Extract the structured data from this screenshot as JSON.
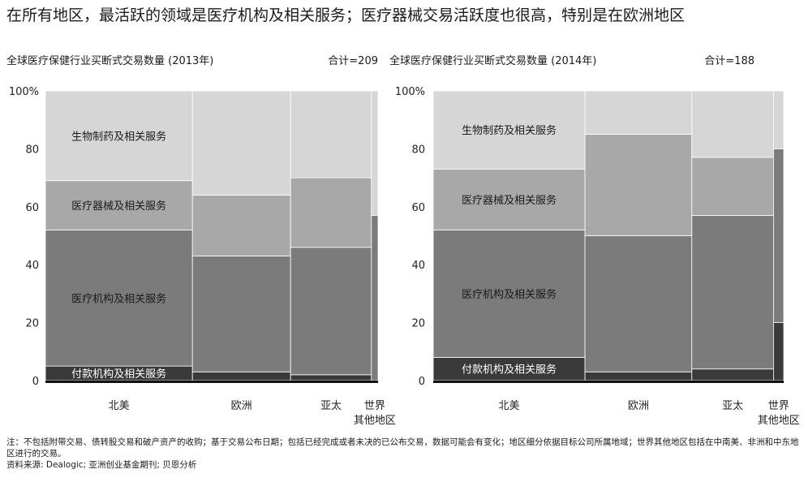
{
  "headline": "在所有地区，最活跃的领域是医疗机构及相关服务；医疗器械交易活跃度也很高，特别是在欧洲地区",
  "charts": [
    {
      "title": "全球医疗保健行业买断式交易数量 (2013年)",
      "total": "合计=209"
    },
    {
      "title": "全球医疗保健行业买断式交易数量 (2014年)",
      "total": "合计=188"
    }
  ],
  "notes": {
    "note": "注：不包括附带交易、债转股交易和破产资产的收购；基于交易公布日期；包括已经完成或者未决的已公布交易，数据可能会有变化；地区细分依据目标公司所属地域；世界其他地区包括在中南美、非洲和中东地区进行的交易。",
    "source": "资料来源: Dealogic; 亚洲创业基金期刊; 贝恩分析"
  },
  "chart_data": [
    {
      "type": "bar",
      "subtype": "marimekko",
      "title": "全球医疗保健行业买断式交易数量 (2013年)",
      "total_label": "合计=209",
      "y_ticks": [
        "100%",
        "80",
        "60",
        "40",
        "20",
        "0"
      ],
      "ylim": [
        0,
        100
      ],
      "categories": [
        "北美",
        "欧洲",
        "亚太",
        "世界其他地区"
      ],
      "category_labels": [
        [
          "北美"
        ],
        [
          "欧洲"
        ],
        [
          "亚太"
        ],
        [
          "世界",
          "其他地区"
        ]
      ],
      "widths": [
        44.2,
        29.5,
        24.3,
        2.0
      ],
      "series": [
        {
          "name": "付款机构及相关服务",
          "color": "#3a3a3a",
          "values": [
            5,
            3,
            2,
            0
          ]
        },
        {
          "name": "医疗机构及相关服务",
          "color": "#7b7b7b",
          "values": [
            47,
            40,
            44,
            57
          ]
        },
        {
          "name": "医疗器械及相关服务",
          "color": "#a8a8a8",
          "values": [
            17,
            21,
            24,
            0
          ]
        },
        {
          "name": "生物制药及相关服务",
          "color": "#d6d6d6",
          "values": [
            31,
            36,
            30,
            43
          ]
        }
      ],
      "segment_labels_on": "北美"
    },
    {
      "type": "bar",
      "subtype": "marimekko",
      "title": "全球医疗保健行业买断式交易数量 (2014年)",
      "total_label": "合计=188",
      "y_ticks": [
        "100%",
        "80",
        "60",
        "40",
        "20",
        "0"
      ],
      "ylim": [
        0,
        100
      ],
      "categories": [
        "北美",
        "欧洲",
        "亚太",
        "世界其他地区"
      ],
      "category_labels": [
        [
          "北美"
        ],
        [
          "欧洲"
        ],
        [
          "亚太"
        ],
        [
          "世界",
          "其他地区"
        ]
      ],
      "widths": [
        44.6,
        31.4,
        24.0,
        3.0
      ],
      "series": [
        {
          "name": "付款机构及相关服务",
          "color": "#3a3a3a",
          "values": [
            8,
            3,
            4,
            20
          ]
        },
        {
          "name": "医疗机构及相关服务",
          "color": "#7b7b7b",
          "values": [
            44,
            47,
            53,
            60
          ]
        },
        {
          "name": "医疗器械及相关服务",
          "color": "#a8a8a8",
          "values": [
            21,
            35,
            20,
            0
          ]
        },
        {
          "name": "生物制药及相关服务",
          "color": "#d6d6d6",
          "values": [
            27,
            15,
            23,
            20
          ]
        }
      ],
      "segment_labels_on": "北美"
    }
  ]
}
